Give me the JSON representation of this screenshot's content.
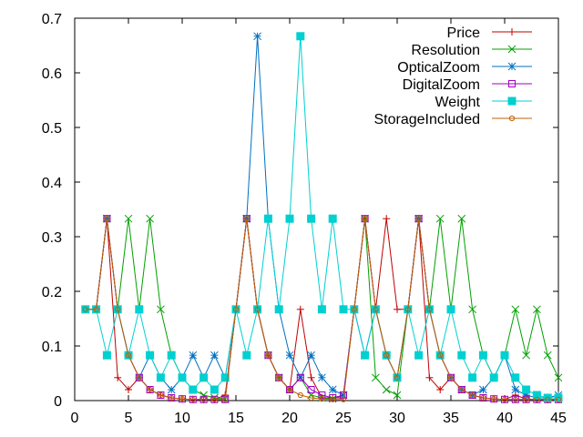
{
  "chart_data": {
    "type": "line",
    "title": "",
    "xlabel": "",
    "ylabel": "",
    "xlim": [
      0,
      45
    ],
    "ylim": [
      0,
      0.7
    ],
    "xticks": [
      0,
      5,
      10,
      15,
      20,
      25,
      30,
      35,
      40,
      45
    ],
    "xtick_labels": [
      "0",
      "5",
      "10",
      "15",
      "20",
      "25",
      "30",
      "35",
      "40",
      "45"
    ],
    "yticks": [
      0,
      0.1,
      0.2,
      0.3,
      0.4,
      0.5,
      0.6,
      0.7
    ],
    "ytick_labels": [
      "0",
      "0.1",
      "0.2",
      "0.3",
      "0.4",
      "0.5",
      "0.6",
      "0.7"
    ],
    "grid": false,
    "legend_position": "top-right",
    "x": [
      1,
      2,
      3,
      4,
      5,
      6,
      7,
      8,
      9,
      10,
      11,
      12,
      13,
      14,
      15,
      16,
      17,
      18,
      19,
      20,
      21,
      22,
      23,
      24,
      25,
      26,
      27,
      28,
      29,
      30,
      31,
      32,
      33,
      34,
      35,
      36,
      37,
      38,
      39,
      40,
      41,
      42,
      43,
      44,
      45
    ],
    "series": [
      {
        "name": "Price",
        "color": "#c00000",
        "marker": "plus",
        "values": [
          0.167,
          0.167,
          0.333,
          0.042,
          0.02,
          0.042,
          0.02,
          0.01,
          0.005,
          0.003,
          0.002,
          0.002,
          0.002,
          0.01,
          0.167,
          0.333,
          0.167,
          0.083,
          0.042,
          0.02,
          0.167,
          0.042,
          0.005,
          0.005,
          0.005,
          0.167,
          0.333,
          0.167,
          0.333,
          0.167,
          0.167,
          0.333,
          0.042,
          0.02,
          0.042,
          0.02,
          0.01,
          0.005,
          0.003,
          0.002,
          0.01,
          0.003,
          0.002,
          0.002,
          0.002
        ]
      },
      {
        "name": "Resolution",
        "color": "#00a000",
        "marker": "cross",
        "values": [
          0.167,
          0.167,
          0.333,
          0.167,
          0.333,
          0.167,
          0.333,
          0.167,
          0.083,
          0.042,
          0.02,
          0.01,
          0.005,
          0.003,
          0.167,
          0.333,
          0.167,
          0.083,
          0.042,
          0.02,
          0.042,
          0.01,
          0.005,
          0.003,
          0.01,
          0.167,
          0.333,
          0.042,
          0.02,
          0.01,
          0.167,
          0.333,
          0.167,
          0.333,
          0.167,
          0.333,
          0.167,
          0.083,
          0.042,
          0.083,
          0.167,
          0.083,
          0.167,
          0.083,
          0.042
        ]
      },
      {
        "name": "OpticalZoom",
        "color": "#0070c0",
        "marker": "star",
        "values": [
          0.167,
          0.167,
          0.333,
          0.167,
          0.083,
          0.042,
          0.083,
          0.042,
          0.02,
          0.042,
          0.083,
          0.042,
          0.083,
          0.042,
          0.167,
          0.333,
          0.667,
          0.333,
          0.167,
          0.083,
          0.042,
          0.083,
          0.042,
          0.02,
          0.01,
          0.167,
          0.083,
          0.167,
          0.083,
          0.042,
          0.167,
          0.333,
          0.167,
          0.083,
          0.042,
          0.02,
          0.01,
          0.02,
          0.042,
          0.083,
          0.02,
          0.01,
          0.005,
          0.005,
          0.01
        ]
      },
      {
        "name": "DigitalZoom",
        "color": "#a000c0",
        "marker": "open-square",
        "values": [
          0.167,
          0.167,
          0.333,
          0.167,
          0.083,
          0.042,
          0.02,
          0.01,
          0.005,
          0.003,
          0.002,
          0.002,
          0.002,
          0.002,
          0.167,
          0.333,
          0.167,
          0.083,
          0.042,
          0.02,
          0.042,
          0.02,
          0.01,
          0.005,
          0.01,
          0.167,
          0.333,
          0.167,
          0.083,
          0.042,
          0.167,
          0.333,
          0.167,
          0.083,
          0.042,
          0.02,
          0.01,
          0.005,
          0.003,
          0.002,
          0.002,
          0.002,
          0.002,
          0.002,
          0.002
        ]
      },
      {
        "name": "Weight",
        "color": "#00d0d0",
        "marker": "filled-square",
        "values": [
          0.167,
          0.167,
          0.083,
          0.167,
          0.083,
          0.167,
          0.083,
          0.042,
          0.083,
          0.042,
          0.02,
          0.042,
          0.02,
          0.042,
          0.167,
          0.083,
          0.167,
          0.333,
          0.167,
          0.333,
          0.667,
          0.333,
          0.167,
          0.333,
          0.167,
          0.167,
          0.083,
          0.167,
          0.083,
          0.042,
          0.167,
          0.083,
          0.167,
          0.083,
          0.167,
          0.083,
          0.042,
          0.083,
          0.042,
          0.083,
          0.042,
          0.02,
          0.01,
          0.005,
          0.005
        ]
      },
      {
        "name": "StorageIncluded",
        "color": "#c06000",
        "marker": "circle",
        "values": [
          0.167,
          0.167,
          0.333,
          0.167,
          0.083,
          0.042,
          0.02,
          0.01,
          0.005,
          0.003,
          0.002,
          0.002,
          0.002,
          0.002,
          0.167,
          0.333,
          0.167,
          0.083,
          0.042,
          0.02,
          0.01,
          0.005,
          0.003,
          0.002,
          0.002,
          0.167,
          0.333,
          0.167,
          0.083,
          0.042,
          0.167,
          0.333,
          0.167,
          0.083,
          0.042,
          0.02,
          0.01,
          0.005,
          0.003,
          0.002,
          0.002,
          0.002,
          0.002,
          0.002,
          0.002
        ]
      }
    ]
  }
}
